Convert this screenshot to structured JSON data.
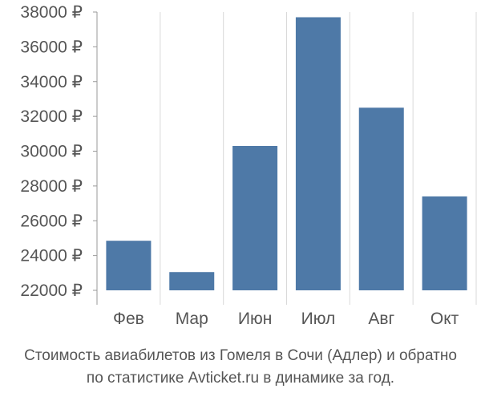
{
  "chart_data": {
    "type": "bar",
    "categories": [
      "Фев",
      "Мар",
      "Июн",
      "Июл",
      "Авг",
      "Окт"
    ],
    "values": [
      24850,
      23050,
      30300,
      37700,
      32500,
      27400
    ],
    "y_ticks": [
      22000,
      24000,
      26000,
      28000,
      30000,
      32000,
      34000,
      36000,
      38000
    ],
    "y_tick_suffix": " ₽",
    "ylim": [
      22000,
      38000
    ],
    "grid": "vertical",
    "bar_color": "#4e79a7",
    "grid_color": "#d9d9d9",
    "axis_color": "#999999"
  },
  "caption": {
    "line1": "Стоимость авиабилетов из Гомеля в Сочи (Адлер) и обратно",
    "line2": "по статистике Avticket.ru в динамике за год."
  }
}
